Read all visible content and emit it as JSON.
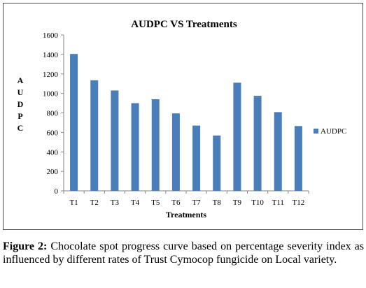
{
  "chart_data": {
    "type": "bar",
    "title": "AUDPC VS Treatments",
    "xlabel": "Treatments",
    "ylabel": "AUDPC",
    "categories": [
      "T1",
      "T2",
      "T3",
      "T4",
      "T5",
      "T6",
      "T7",
      "T8",
      "T9",
      "T10",
      "T11",
      "T12"
    ],
    "series": [
      {
        "name": "AUDPC",
        "values": [
          1405,
          1135,
          1030,
          900,
          940,
          795,
          670,
          568,
          1110,
          975,
          808,
          665
        ],
        "color": "#4a7ebb"
      }
    ],
    "ylim": [
      0,
      1600
    ],
    "yticks": [
      0,
      200,
      400,
      600,
      800,
      1000,
      1200,
      1400,
      1600
    ],
    "grid": false,
    "legend_position": "right"
  },
  "caption": {
    "label": "Figure 2:",
    "text": "Chocolate spot progress curve based on percentage severity index as influenced by different rates of Trust Cymocop fungicide on Local variety."
  }
}
